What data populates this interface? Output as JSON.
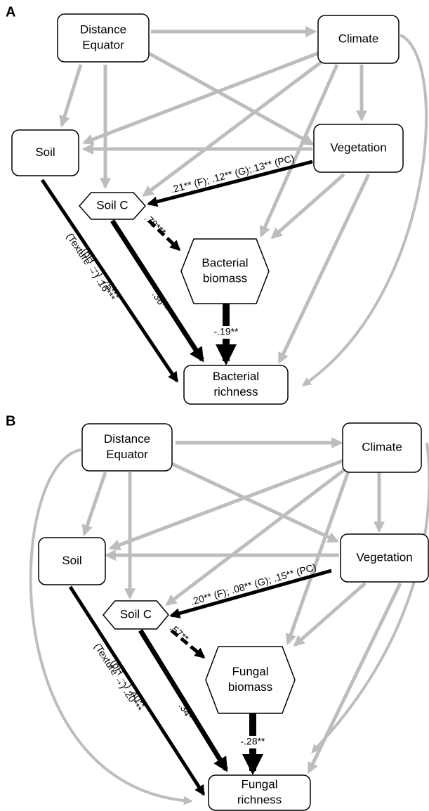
{
  "panels": [
    {
      "label": "A",
      "nodes": [
        {
          "lines": [
            "Distance",
            "Equator"
          ]
        },
        {
          "lines": [
            "Climate"
          ]
        },
        {
          "lines": [
            "Soil"
          ]
        },
        {
          "lines": [
            "Vegetation"
          ]
        },
        {
          "lines": [
            "Soil C"
          ]
        },
        {
          "lines": [
            "Bacterial",
            "biomass"
          ]
        },
        {
          "lines": [
            "Bacterial",
            "richness"
          ]
        }
      ],
      "paths": [
        ".21** (F); .12** (G);.13** (PC)",
        ".78***",
        ".36**",
        "-.19**",
        "(pH →) .75***",
        "(Texture →) .16***"
      ]
    },
    {
      "label": "B",
      "nodes": [
        {
          "lines": [
            "Distance",
            "Equator"
          ]
        },
        {
          "lines": [
            "Climate"
          ]
        },
        {
          "lines": [
            "Soil"
          ]
        },
        {
          "lines": [
            "Vegetation"
          ]
        },
        {
          "lines": [
            "Soil C"
          ]
        },
        {
          "lines": [
            "Fungal",
            "biomass"
          ]
        },
        {
          "lines": [
            "Fungal",
            "richness"
          ]
        }
      ],
      "paths": [
        ".20** (F); .08** (G); .15** (PC)",
        ".57**",
        ".34*",
        "-.28**",
        "(pH →) .40**",
        "(Texture →) .20***"
      ]
    }
  ]
}
